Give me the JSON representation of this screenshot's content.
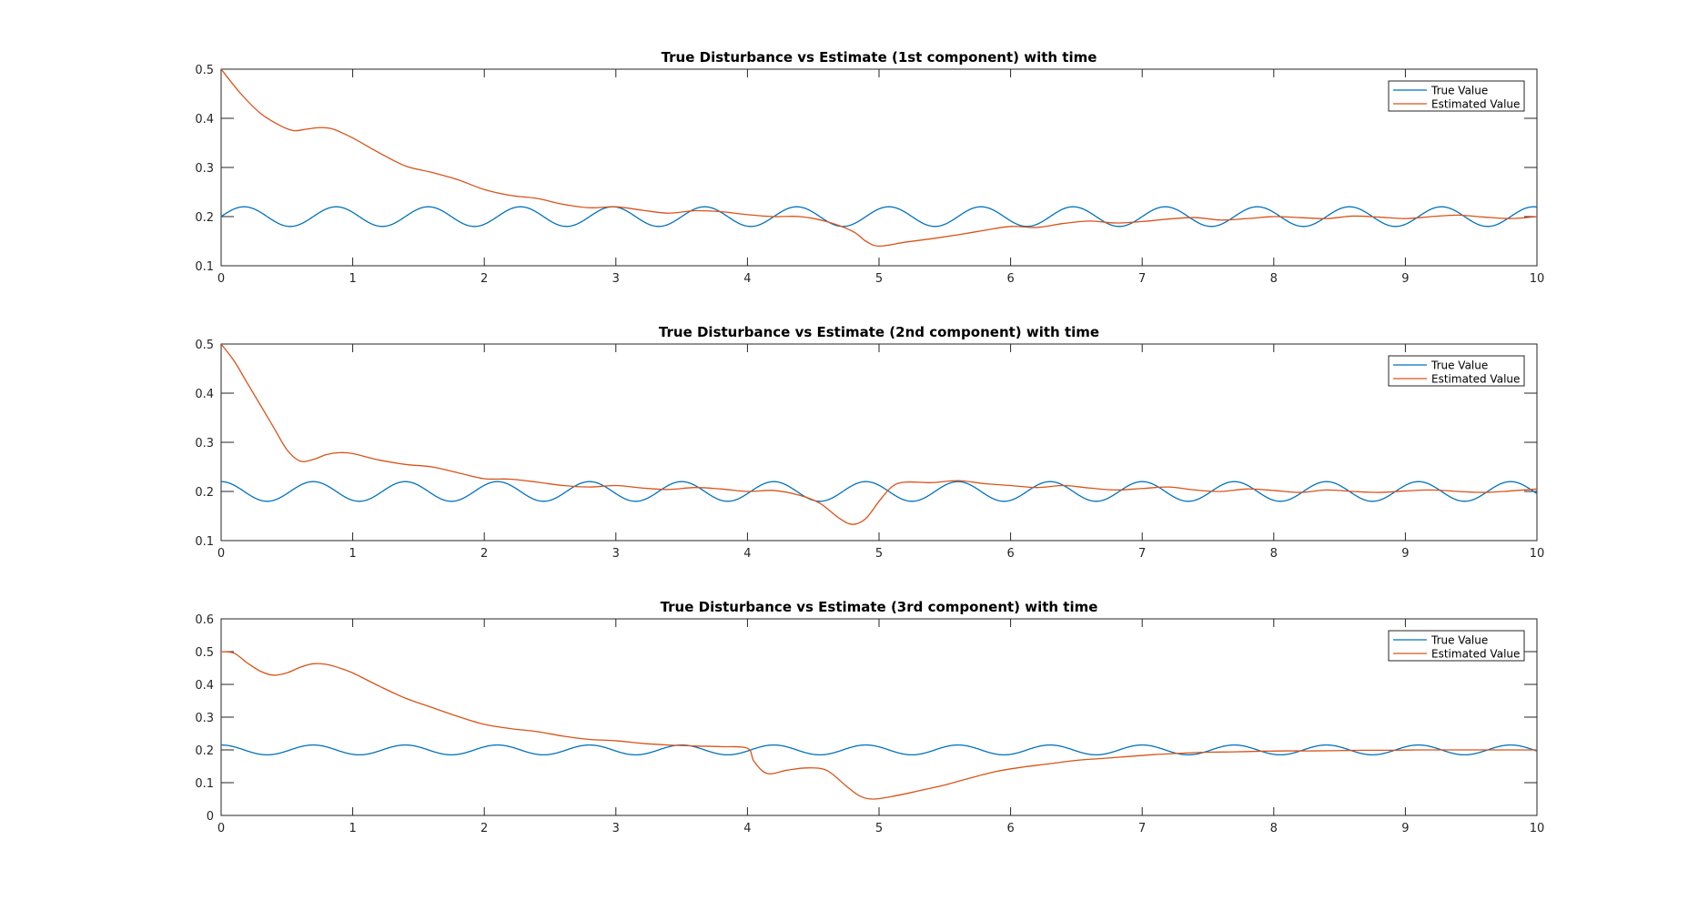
{
  "colors": {
    "true": "#0072BD",
    "estimated": "#D95319"
  },
  "chart_data": [
    {
      "type": "line",
      "title": "True Disturbance vs Estimate (1st component) with time",
      "xlim": [
        0,
        10
      ],
      "ylim": [
        0.1,
        0.5
      ],
      "xticks": [
        "0",
        "1",
        "2",
        "3",
        "4",
        "5",
        "6",
        "7",
        "8",
        "9",
        "10"
      ],
      "yticks": [
        "0.1",
        "0.2",
        "0.3",
        "0.4",
        "0.5"
      ],
      "legend": "top-right",
      "grid": false,
      "series": [
        {
          "name": "True Value",
          "color": "#0072BD",
          "model": "0.2 + 0.02*sin(2*pi*t/0.7)"
        },
        {
          "name": "Estimated Value",
          "color": "#D95319",
          "x": [
            0,
            0.15,
            0.3,
            0.45,
            0.55,
            0.65,
            0.75,
            0.85,
            1.0,
            1.2,
            1.4,
            1.6,
            1.8,
            2.0,
            2.2,
            2.4,
            2.6,
            2.8,
            3.0,
            3.2,
            3.4,
            3.6,
            3.8,
            4.0,
            4.2,
            4.4,
            4.6,
            4.8,
            4.9,
            5.0,
            5.2,
            5.4,
            5.6,
            5.8,
            6.0,
            6.2,
            6.4,
            6.6,
            6.8,
            7.0,
            7.2,
            7.4,
            7.6,
            7.8,
            8.0,
            8.2,
            8.4,
            8.6,
            8.8,
            9.0,
            9.2,
            9.4,
            9.6,
            9.8,
            10.0
          ],
          "y": [
            0.5,
            0.45,
            0.41,
            0.385,
            0.375,
            0.378,
            0.381,
            0.378,
            0.36,
            0.33,
            0.303,
            0.29,
            0.275,
            0.255,
            0.243,
            0.237,
            0.225,
            0.218,
            0.22,
            0.213,
            0.207,
            0.212,
            0.21,
            0.204,
            0.2,
            0.2,
            0.19,
            0.17,
            0.15,
            0.14,
            0.148,
            0.155,
            0.163,
            0.172,
            0.18,
            0.178,
            0.186,
            0.191,
            0.187,
            0.19,
            0.195,
            0.198,
            0.193,
            0.196,
            0.2,
            0.198,
            0.196,
            0.201,
            0.199,
            0.196,
            0.2,
            0.203,
            0.199,
            0.196,
            0.2
          ]
        }
      ]
    },
    {
      "type": "line",
      "title": "True Disturbance vs Estimate (2nd component) with time",
      "xlim": [
        0,
        10
      ],
      "ylim": [
        0.1,
        0.5
      ],
      "xticks": [
        "0",
        "1",
        "2",
        "3",
        "4",
        "5",
        "6",
        "7",
        "8",
        "9",
        "10"
      ],
      "yticks": [
        "0.1",
        "0.2",
        "0.3",
        "0.4",
        "0.5"
      ],
      "legend": "top-right",
      "grid": false,
      "series": [
        {
          "name": "True Value",
          "color": "#0072BD",
          "model": "0.2 + 0.02*cos(2*pi*t/0.7)"
        },
        {
          "name": "Estimated Value",
          "color": "#D95319",
          "x": [
            0,
            0.1,
            0.2,
            0.3,
            0.4,
            0.5,
            0.6,
            0.7,
            0.8,
            0.9,
            1.0,
            1.2,
            1.4,
            1.6,
            1.8,
            2.0,
            2.2,
            2.4,
            2.6,
            2.8,
            3.0,
            3.2,
            3.4,
            3.6,
            3.8,
            4.0,
            4.2,
            4.4,
            4.55,
            4.7,
            4.8,
            4.9,
            5.0,
            5.1,
            5.2,
            5.4,
            5.6,
            5.8,
            6.0,
            6.2,
            6.4,
            6.6,
            6.8,
            7.0,
            7.2,
            7.4,
            7.6,
            7.8,
            8.0,
            8.2,
            8.4,
            8.6,
            8.8,
            9.0,
            9.2,
            9.4,
            9.6,
            9.8,
            10.0
          ],
          "y": [
            0.5,
            0.465,
            0.42,
            0.375,
            0.33,
            0.285,
            0.262,
            0.265,
            0.275,
            0.279,
            0.277,
            0.264,
            0.255,
            0.25,
            0.238,
            0.226,
            0.225,
            0.219,
            0.212,
            0.209,
            0.212,
            0.207,
            0.204,
            0.208,
            0.205,
            0.2,
            0.202,
            0.192,
            0.176,
            0.145,
            0.133,
            0.145,
            0.18,
            0.21,
            0.219,
            0.218,
            0.222,
            0.216,
            0.212,
            0.208,
            0.212,
            0.207,
            0.203,
            0.206,
            0.209,
            0.203,
            0.2,
            0.205,
            0.202,
            0.198,
            0.203,
            0.2,
            0.198,
            0.201,
            0.203,
            0.2,
            0.198,
            0.201,
            0.205
          ]
        }
      ]
    },
    {
      "type": "line",
      "title": "True Disturbance vs Estimate (3rd component) with time",
      "xlim": [
        0,
        10
      ],
      "ylim": [
        0,
        0.6
      ],
      "xticks": [
        "0",
        "1",
        "2",
        "3",
        "4",
        "5",
        "6",
        "7",
        "8",
        "9",
        "10"
      ],
      "yticks": [
        "0",
        "0.1",
        "0.2",
        "0.3",
        "0.4",
        "0.5",
        "0.6"
      ],
      "legend": "top-right",
      "grid": false,
      "series": [
        {
          "name": "True Value",
          "color": "#0072BD",
          "model": "0.2 + 0.015*cos(2*pi*t/0.7)"
        },
        {
          "name": "Estimated Value",
          "color": "#D95319",
          "x": [
            0,
            0.1,
            0.2,
            0.3,
            0.4,
            0.5,
            0.6,
            0.7,
            0.8,
            0.9,
            1.0,
            1.2,
            1.4,
            1.6,
            1.8,
            2.0,
            2.2,
            2.4,
            2.6,
            2.8,
            3.0,
            3.2,
            3.4,
            3.6,
            3.8,
            4.0,
            4.05,
            4.15,
            4.3,
            4.45,
            4.6,
            4.75,
            4.85,
            4.95,
            5.1,
            5.3,
            5.5,
            5.7,
            5.9,
            6.1,
            6.3,
            6.5,
            6.7,
            6.9,
            7.1,
            7.3,
            7.5,
            7.7,
            7.9,
            8.1,
            8.3,
            8.5,
            8.7,
            8.9,
            9.1,
            9.3,
            9.5,
            9.7,
            9.9,
            10.0
          ],
          "y": [
            0.5,
            0.495,
            0.465,
            0.44,
            0.428,
            0.435,
            0.452,
            0.463,
            0.461,
            0.45,
            0.435,
            0.395,
            0.358,
            0.33,
            0.302,
            0.278,
            0.265,
            0.256,
            0.242,
            0.232,
            0.228,
            0.22,
            0.215,
            0.212,
            0.21,
            0.205,
            0.165,
            0.128,
            0.138,
            0.145,
            0.138,
            0.09,
            0.06,
            0.05,
            0.058,
            0.075,
            0.093,
            0.115,
            0.135,
            0.148,
            0.158,
            0.168,
            0.174,
            0.18,
            0.186,
            0.19,
            0.193,
            0.194,
            0.196,
            0.197,
            0.197,
            0.198,
            0.199,
            0.199,
            0.2,
            0.2,
            0.2,
            0.2,
            0.2,
            0.2
          ]
        }
      ]
    }
  ]
}
